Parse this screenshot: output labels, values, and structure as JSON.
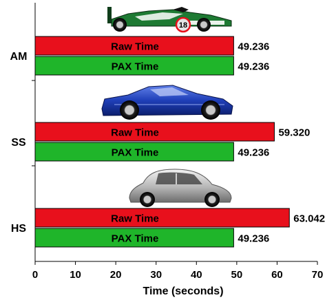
{
  "chart_data": {
    "type": "bar",
    "orientation": "horizontal",
    "xlabel": "Time (seconds)",
    "xlim": [
      0,
      70
    ],
    "xticks": [
      0,
      10,
      20,
      30,
      40,
      50,
      60,
      70
    ],
    "grid": false,
    "categories": [
      "AM",
      "SS",
      "HS"
    ],
    "series": [
      {
        "name": "Raw Time",
        "color": "#e8101c",
        "values": [
          49.236,
          59.32,
          63.042
        ]
      },
      {
        "name": "PAX Time",
        "color": "#1fb52a",
        "values": [
          49.236,
          49.236,
          49.236
        ]
      }
    ],
    "value_labels": {
      "Raw Time": [
        "49.236",
        "59.320",
        "63.042"
      ],
      "PAX Time": [
        "49.236",
        "49.236",
        "49.236"
      ]
    },
    "group_images": [
      "formula-car-icon",
      "sports-car-icon",
      "compact-car-icon"
    ],
    "group_image_numbers": [
      "18",
      "",
      ""
    ]
  }
}
